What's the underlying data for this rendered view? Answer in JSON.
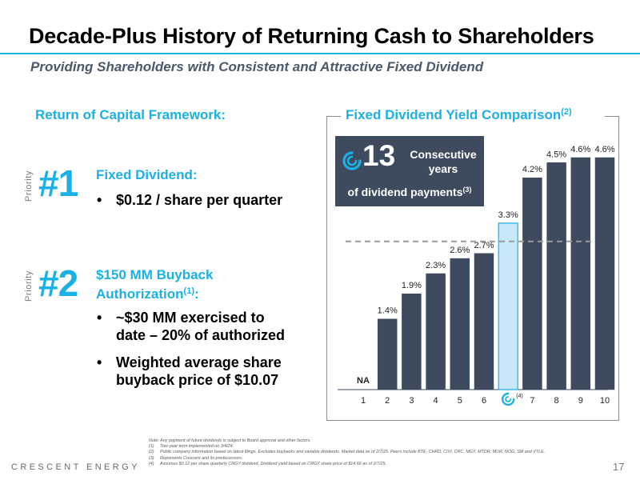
{
  "header": {
    "title": "Decade-Plus History of Returning Cash to Shareholders",
    "subtitle": "Providing Shareholders with Consistent and Attractive Fixed Dividend"
  },
  "framework": {
    "heading": "Return of Capital Framework:",
    "priority_label": "Priority",
    "items": [
      {
        "number": "#1",
        "heading": "Fixed Dividend:",
        "bullets": [
          "$0.12 / share per quarter"
        ]
      },
      {
        "number": "#2",
        "heading_line1": "$150 MM Buyback",
        "heading_line2": "Authorization",
        "heading_sup": "(1)",
        "heading_suffix": ":",
        "bullets": [
          {
            "line1": "~$30 MM exercised to",
            "line2": "date – 20% of authorized"
          },
          {
            "line1": "Weighted average share",
            "line2": "buyback price of $10.07"
          }
        ]
      }
    ]
  },
  "chart_panel": {
    "heading": "Fixed Dividend Yield Comparison",
    "heading_sup": "(2)",
    "callout": {
      "number": "13",
      "line1": "Consecutive years",
      "line2": "of dividend payments",
      "line2_sup": "(3)",
      "icon": "crescent-logo-icon"
    }
  },
  "chart_data": {
    "type": "bar",
    "categories": [
      "1",
      "2",
      "3",
      "4",
      "5",
      "6",
      "",
      "7",
      "8",
      "9",
      "10"
    ],
    "values": [
      null,
      1.4,
      1.9,
      2.3,
      2.6,
      2.7,
      3.3,
      4.2,
      4.5,
      4.6,
      4.6
    ],
    "labels": [
      "NA",
      "1.4%",
      "1.9%",
      "2.3%",
      "2.6%",
      "2.7%",
      "3.3%",
      "4.2%",
      "4.5%",
      "4.6%",
      "4.6%"
    ],
    "highlight_index": 6,
    "highlight_marker": "crescent-logo-icon",
    "highlight_note": "(4)",
    "reference_line": 2.7,
    "ylim": [
      0,
      4.6
    ],
    "colors": {
      "bar": "#3e4a5e",
      "highlight": "#c7e8f8",
      "highlight_border": "#1ab1e6",
      "reference": "#9a9a9a"
    }
  },
  "footnotes": {
    "intro": "Note: Any payment of future dividends is subject to Board approval and other factors.",
    "items": [
      {
        "n": "(1)",
        "text": "Two-year term implemented on 3/4/24."
      },
      {
        "n": "(2)",
        "text": "Public company information based on latest filings. Excludes buybacks and variable dividends. Market data as of 2/7/25. Peers include BTE, CHRD, CIVI, CRC, MGY, MTDR, MUR, NOG, SM and VTLE."
      },
      {
        "n": "(3)",
        "text": "Represents Crescent and its predecessors."
      },
      {
        "n": "(4)",
        "text": "Assumes $0.12 per share quarterly CRGY dividend. Dividend yield based on CRGY share price of $14.66 as of 2/7/25."
      }
    ]
  },
  "footer": {
    "brand": "CRESCENT ENERGY",
    "page": "17"
  },
  "colors": {
    "accent": "#1ab1e6",
    "dark": "#3e4a5e"
  }
}
